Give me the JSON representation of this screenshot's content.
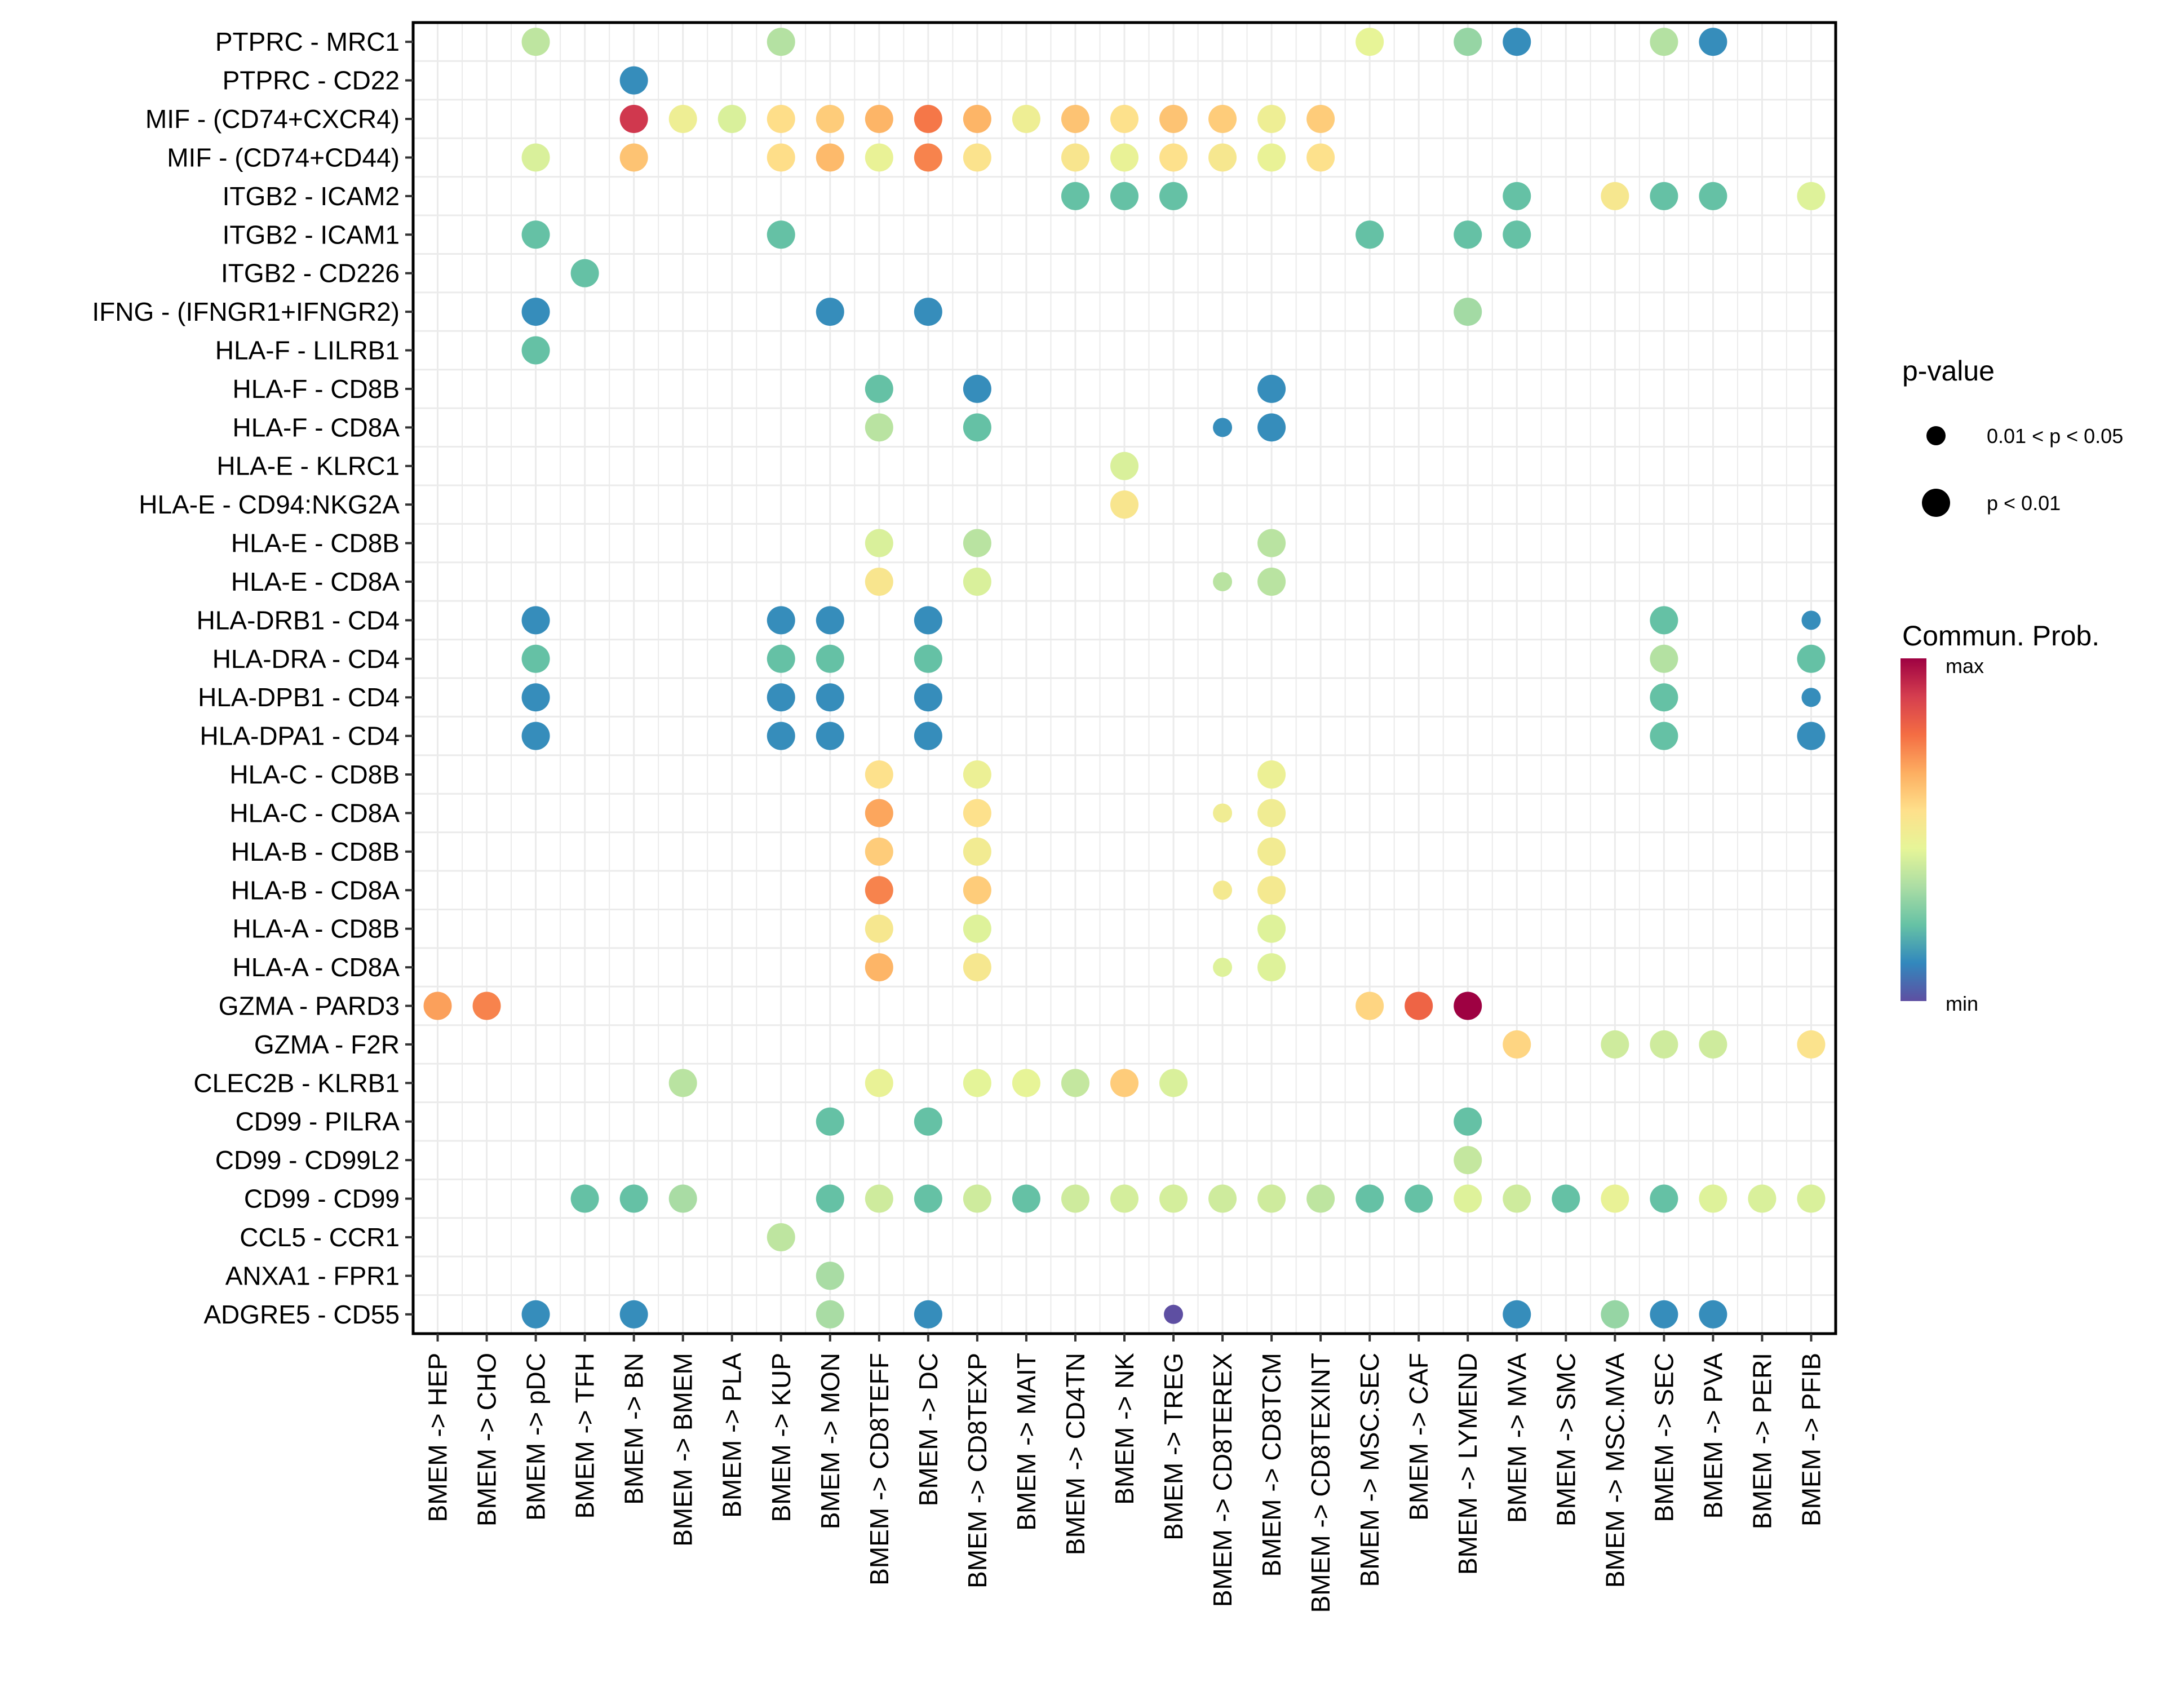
{
  "chart_data": {
    "type": "scatter",
    "subtype": "dot-matrix",
    "title": "",
    "xlabel": "",
    "ylabel": "",
    "grid": true,
    "x_categories": [
      "BMEM -> HEP",
      "BMEM -> CHO",
      "BMEM -> pDC",
      "BMEM -> TFH",
      "BMEM -> BN",
      "BMEM -> BMEM",
      "BMEM -> PLA",
      "BMEM -> KUP",
      "BMEM -> MON",
      "BMEM -> CD8TEFF",
      "BMEM -> DC",
      "BMEM -> CD8TEXP",
      "BMEM -> MAIT",
      "BMEM -> CD4TN",
      "BMEM -> NK",
      "BMEM -> TREG",
      "BMEM -> CD8TEREX",
      "BMEM -> CD8TCM",
      "BMEM -> CD8TEXINT",
      "BMEM -> MSC.SEC",
      "BMEM -> CAF",
      "BMEM -> LYMEND",
      "BMEM -> MVA",
      "BMEM -> SMC",
      "BMEM -> MSC.MVA",
      "BMEM -> SEC",
      "BMEM -> PVA",
      "BMEM -> PERI",
      "BMEM -> PFIB"
    ],
    "y_categories": [
      "PTPRC - MRC1",
      "PTPRC - CD22",
      "MIF - (CD74+CXCR4)",
      "MIF - (CD74+CD44)",
      "ITGB2 - ICAM2",
      "ITGB2 - ICAM1",
      "ITGB2 - CD226",
      "IFNG - (IFNGR1+IFNGR2)",
      "HLA-F - LILRB1",
      "HLA-F - CD8B",
      "HLA-F - CD8A",
      "HLA-E - KLRC1",
      "HLA-E - CD94:NKG2A",
      "HLA-E - CD8B",
      "HLA-E - CD8A",
      "HLA-DRB1 - CD4",
      "HLA-DRA - CD4",
      "HLA-DPB1 - CD4",
      "HLA-DPA1 - CD4",
      "HLA-C - CD8B",
      "HLA-C - CD8A",
      "HLA-B - CD8B",
      "HLA-B - CD8A",
      "HLA-A - CD8B",
      "HLA-A - CD8A",
      "GZMA - PARD3",
      "GZMA - F2R",
      "CLEC2B - KLRB1",
      "CD99 - PILRA",
      "CD99 - CD99L2",
      "CD99 - CD99",
      "CCL5 - CCR1",
      "ANXA1 - FPR1",
      "ADGRE5 - CD55"
    ],
    "points_note": "each point: [x_index, y_index, commun_prob (0=min..1=max, estimated from color), p_class (1 = p<0.01, 0 = 0.01<p<0.05)]",
    "points": [
      [
        2,
        0,
        0.37,
        1
      ],
      [
        7,
        0,
        0.35,
        1
      ],
      [
        19,
        0,
        0.45,
        1
      ],
      [
        21,
        0,
        0.3,
        1
      ],
      [
        22,
        0,
        0.12,
        1
      ],
      [
        25,
        0,
        0.35,
        1
      ],
      [
        26,
        0,
        0.12,
        1
      ],
      [
        4,
        1,
        0.12,
        1
      ],
      [
        4,
        2,
        0.9,
        1
      ],
      [
        5,
        2,
        0.48,
        1
      ],
      [
        6,
        2,
        0.42,
        1
      ],
      [
        7,
        2,
        0.56,
        1
      ],
      [
        8,
        2,
        0.6,
        1
      ],
      [
        9,
        2,
        0.65,
        1
      ],
      [
        10,
        2,
        0.76,
        1
      ],
      [
        11,
        2,
        0.65,
        1
      ],
      [
        12,
        2,
        0.48,
        1
      ],
      [
        13,
        2,
        0.62,
        1
      ],
      [
        14,
        2,
        0.55,
        1
      ],
      [
        15,
        2,
        0.62,
        1
      ],
      [
        16,
        2,
        0.6,
        1
      ],
      [
        17,
        2,
        0.48,
        1
      ],
      [
        18,
        2,
        0.6,
        1
      ],
      [
        2,
        3,
        0.42,
        1
      ],
      [
        4,
        3,
        0.62,
        1
      ],
      [
        7,
        3,
        0.56,
        1
      ],
      [
        8,
        3,
        0.64,
        1
      ],
      [
        9,
        3,
        0.46,
        1
      ],
      [
        10,
        3,
        0.74,
        1
      ],
      [
        11,
        3,
        0.54,
        1
      ],
      [
        13,
        3,
        0.53,
        1
      ],
      [
        14,
        3,
        0.46,
        1
      ],
      [
        15,
        3,
        0.55,
        1
      ],
      [
        16,
        3,
        0.52,
        1
      ],
      [
        17,
        3,
        0.46,
        1
      ],
      [
        18,
        3,
        0.55,
        1
      ],
      [
        13,
        4,
        0.22,
        1
      ],
      [
        14,
        4,
        0.22,
        1
      ],
      [
        15,
        4,
        0.22,
        1
      ],
      [
        22,
        4,
        0.22,
        1
      ],
      [
        24,
        4,
        0.52,
        1
      ],
      [
        25,
        4,
        0.22,
        1
      ],
      [
        26,
        4,
        0.22,
        1
      ],
      [
        28,
        4,
        0.43,
        1
      ],
      [
        2,
        5,
        0.22,
        1
      ],
      [
        7,
        5,
        0.22,
        1
      ],
      [
        19,
        5,
        0.22,
        1
      ],
      [
        21,
        5,
        0.22,
        1
      ],
      [
        22,
        5,
        0.22,
        1
      ],
      [
        3,
        6,
        0.22,
        1
      ],
      [
        2,
        7,
        0.12,
        1
      ],
      [
        8,
        7,
        0.12,
        1
      ],
      [
        10,
        7,
        0.12,
        1
      ],
      [
        21,
        7,
        0.32,
        1
      ],
      [
        2,
        8,
        0.22,
        1
      ],
      [
        9,
        9,
        0.22,
        1
      ],
      [
        11,
        9,
        0.12,
        1
      ],
      [
        17,
        9,
        0.12,
        1
      ],
      [
        9,
        10,
        0.36,
        1
      ],
      [
        11,
        10,
        0.22,
        1
      ],
      [
        16,
        10,
        0.12,
        0
      ],
      [
        17,
        10,
        0.12,
        1
      ],
      [
        14,
        11,
        0.42,
        1
      ],
      [
        14,
        12,
        0.53,
        1
      ],
      [
        9,
        13,
        0.42,
        1
      ],
      [
        11,
        13,
        0.36,
        1
      ],
      [
        17,
        13,
        0.36,
        1
      ],
      [
        9,
        14,
        0.53,
        1
      ],
      [
        11,
        14,
        0.42,
        1
      ],
      [
        16,
        14,
        0.36,
        0
      ],
      [
        17,
        14,
        0.36,
        1
      ],
      [
        2,
        15,
        0.12,
        1
      ],
      [
        7,
        15,
        0.12,
        1
      ],
      [
        8,
        15,
        0.12,
        1
      ],
      [
        10,
        15,
        0.12,
        1
      ],
      [
        25,
        15,
        0.22,
        1
      ],
      [
        28,
        15,
        0.12,
        0
      ],
      [
        2,
        16,
        0.22,
        1
      ],
      [
        7,
        16,
        0.22,
        1
      ],
      [
        8,
        16,
        0.22,
        1
      ],
      [
        10,
        16,
        0.22,
        1
      ],
      [
        25,
        16,
        0.35,
        1
      ],
      [
        28,
        16,
        0.22,
        1
      ],
      [
        2,
        17,
        0.12,
        1
      ],
      [
        7,
        17,
        0.12,
        1
      ],
      [
        8,
        17,
        0.12,
        1
      ],
      [
        10,
        17,
        0.12,
        1
      ],
      [
        25,
        17,
        0.22,
        1
      ],
      [
        28,
        17,
        0.12,
        0
      ],
      [
        2,
        18,
        0.12,
        1
      ],
      [
        7,
        18,
        0.12,
        1
      ],
      [
        8,
        18,
        0.12,
        1
      ],
      [
        10,
        18,
        0.12,
        1
      ],
      [
        25,
        18,
        0.22,
        1
      ],
      [
        28,
        18,
        0.12,
        1
      ],
      [
        9,
        19,
        0.55,
        1
      ],
      [
        11,
        19,
        0.47,
        1
      ],
      [
        17,
        19,
        0.47,
        1
      ],
      [
        9,
        20,
        0.68,
        1
      ],
      [
        11,
        20,
        0.55,
        1
      ],
      [
        16,
        20,
        0.49,
        0
      ],
      [
        17,
        20,
        0.49,
        1
      ],
      [
        9,
        21,
        0.6,
        1
      ],
      [
        11,
        21,
        0.5,
        1
      ],
      [
        17,
        21,
        0.5,
        1
      ],
      [
        9,
        22,
        0.74,
        1
      ],
      [
        11,
        22,
        0.6,
        1
      ],
      [
        16,
        22,
        0.51,
        0
      ],
      [
        17,
        22,
        0.51,
        1
      ],
      [
        9,
        23,
        0.52,
        1
      ],
      [
        11,
        23,
        0.43,
        1
      ],
      [
        17,
        23,
        0.43,
        1
      ],
      [
        9,
        24,
        0.65,
        1
      ],
      [
        11,
        24,
        0.52,
        1
      ],
      [
        16,
        24,
        0.43,
        0
      ],
      [
        17,
        24,
        0.43,
        1
      ],
      [
        0,
        25,
        0.69,
        1
      ],
      [
        1,
        25,
        0.74,
        1
      ],
      [
        19,
        25,
        0.58,
        1
      ],
      [
        20,
        25,
        0.8,
        1
      ],
      [
        21,
        25,
        1.0,
        1
      ],
      [
        22,
        26,
        0.58,
        1
      ],
      [
        24,
        26,
        0.4,
        1
      ],
      [
        25,
        26,
        0.4,
        1
      ],
      [
        26,
        26,
        0.4,
        1
      ],
      [
        28,
        26,
        0.54,
        1
      ],
      [
        5,
        27,
        0.36,
        1
      ],
      [
        9,
        27,
        0.46,
        1
      ],
      [
        11,
        27,
        0.44,
        1
      ],
      [
        12,
        27,
        0.45,
        1
      ],
      [
        13,
        27,
        0.38,
        1
      ],
      [
        14,
        27,
        0.6,
        1
      ],
      [
        15,
        27,
        0.42,
        1
      ],
      [
        8,
        28,
        0.22,
        1
      ],
      [
        10,
        28,
        0.22,
        1
      ],
      [
        21,
        28,
        0.22,
        1
      ],
      [
        21,
        29,
        0.38,
        1
      ],
      [
        3,
        30,
        0.22,
        1
      ],
      [
        4,
        30,
        0.22,
        1
      ],
      [
        5,
        30,
        0.33,
        1
      ],
      [
        8,
        30,
        0.22,
        1
      ],
      [
        9,
        30,
        0.4,
        1
      ],
      [
        10,
        30,
        0.22,
        1
      ],
      [
        11,
        30,
        0.4,
        1
      ],
      [
        12,
        30,
        0.22,
        1
      ],
      [
        13,
        30,
        0.4,
        1
      ],
      [
        14,
        30,
        0.41,
        1
      ],
      [
        15,
        30,
        0.41,
        1
      ],
      [
        16,
        30,
        0.4,
        1
      ],
      [
        17,
        30,
        0.4,
        1
      ],
      [
        18,
        30,
        0.37,
        1
      ],
      [
        19,
        30,
        0.22,
        1
      ],
      [
        20,
        30,
        0.22,
        1
      ],
      [
        21,
        30,
        0.43,
        1
      ],
      [
        22,
        30,
        0.4,
        1
      ],
      [
        23,
        30,
        0.22,
        1
      ],
      [
        24,
        30,
        0.46,
        1
      ],
      [
        25,
        30,
        0.22,
        1
      ],
      [
        26,
        30,
        0.43,
        1
      ],
      [
        27,
        30,
        0.42,
        1
      ],
      [
        28,
        30,
        0.42,
        1
      ],
      [
        7,
        31,
        0.37,
        1
      ],
      [
        8,
        32,
        0.33,
        1
      ],
      [
        2,
        33,
        0.12,
        1
      ],
      [
        4,
        33,
        0.12,
        1
      ],
      [
        8,
        33,
        0.33,
        1
      ],
      [
        10,
        33,
        0.12,
        1
      ],
      [
        15,
        33,
        0.0,
        0
      ],
      [
        22,
        33,
        0.12,
        1
      ],
      [
        24,
        33,
        0.3,
        1
      ],
      [
        25,
        33,
        0.12,
        1
      ],
      [
        26,
        33,
        0.12,
        1
      ]
    ],
    "legend": {
      "size_title": "p-value",
      "size_entries": [
        "0.01 < p < 0.05",
        "p < 0.01"
      ],
      "color_title": "Commun. Prob.",
      "color_max_label": "max",
      "color_min_label": "min",
      "color_scale": [
        "#5E4FA2",
        "#3288BD",
        "#66C2A5",
        "#ABDDA4",
        "#E6F598",
        "#FEE08B",
        "#FDAE61",
        "#F46D43",
        "#D53E4F",
        "#9E0142"
      ],
      "placement": "right"
    }
  }
}
